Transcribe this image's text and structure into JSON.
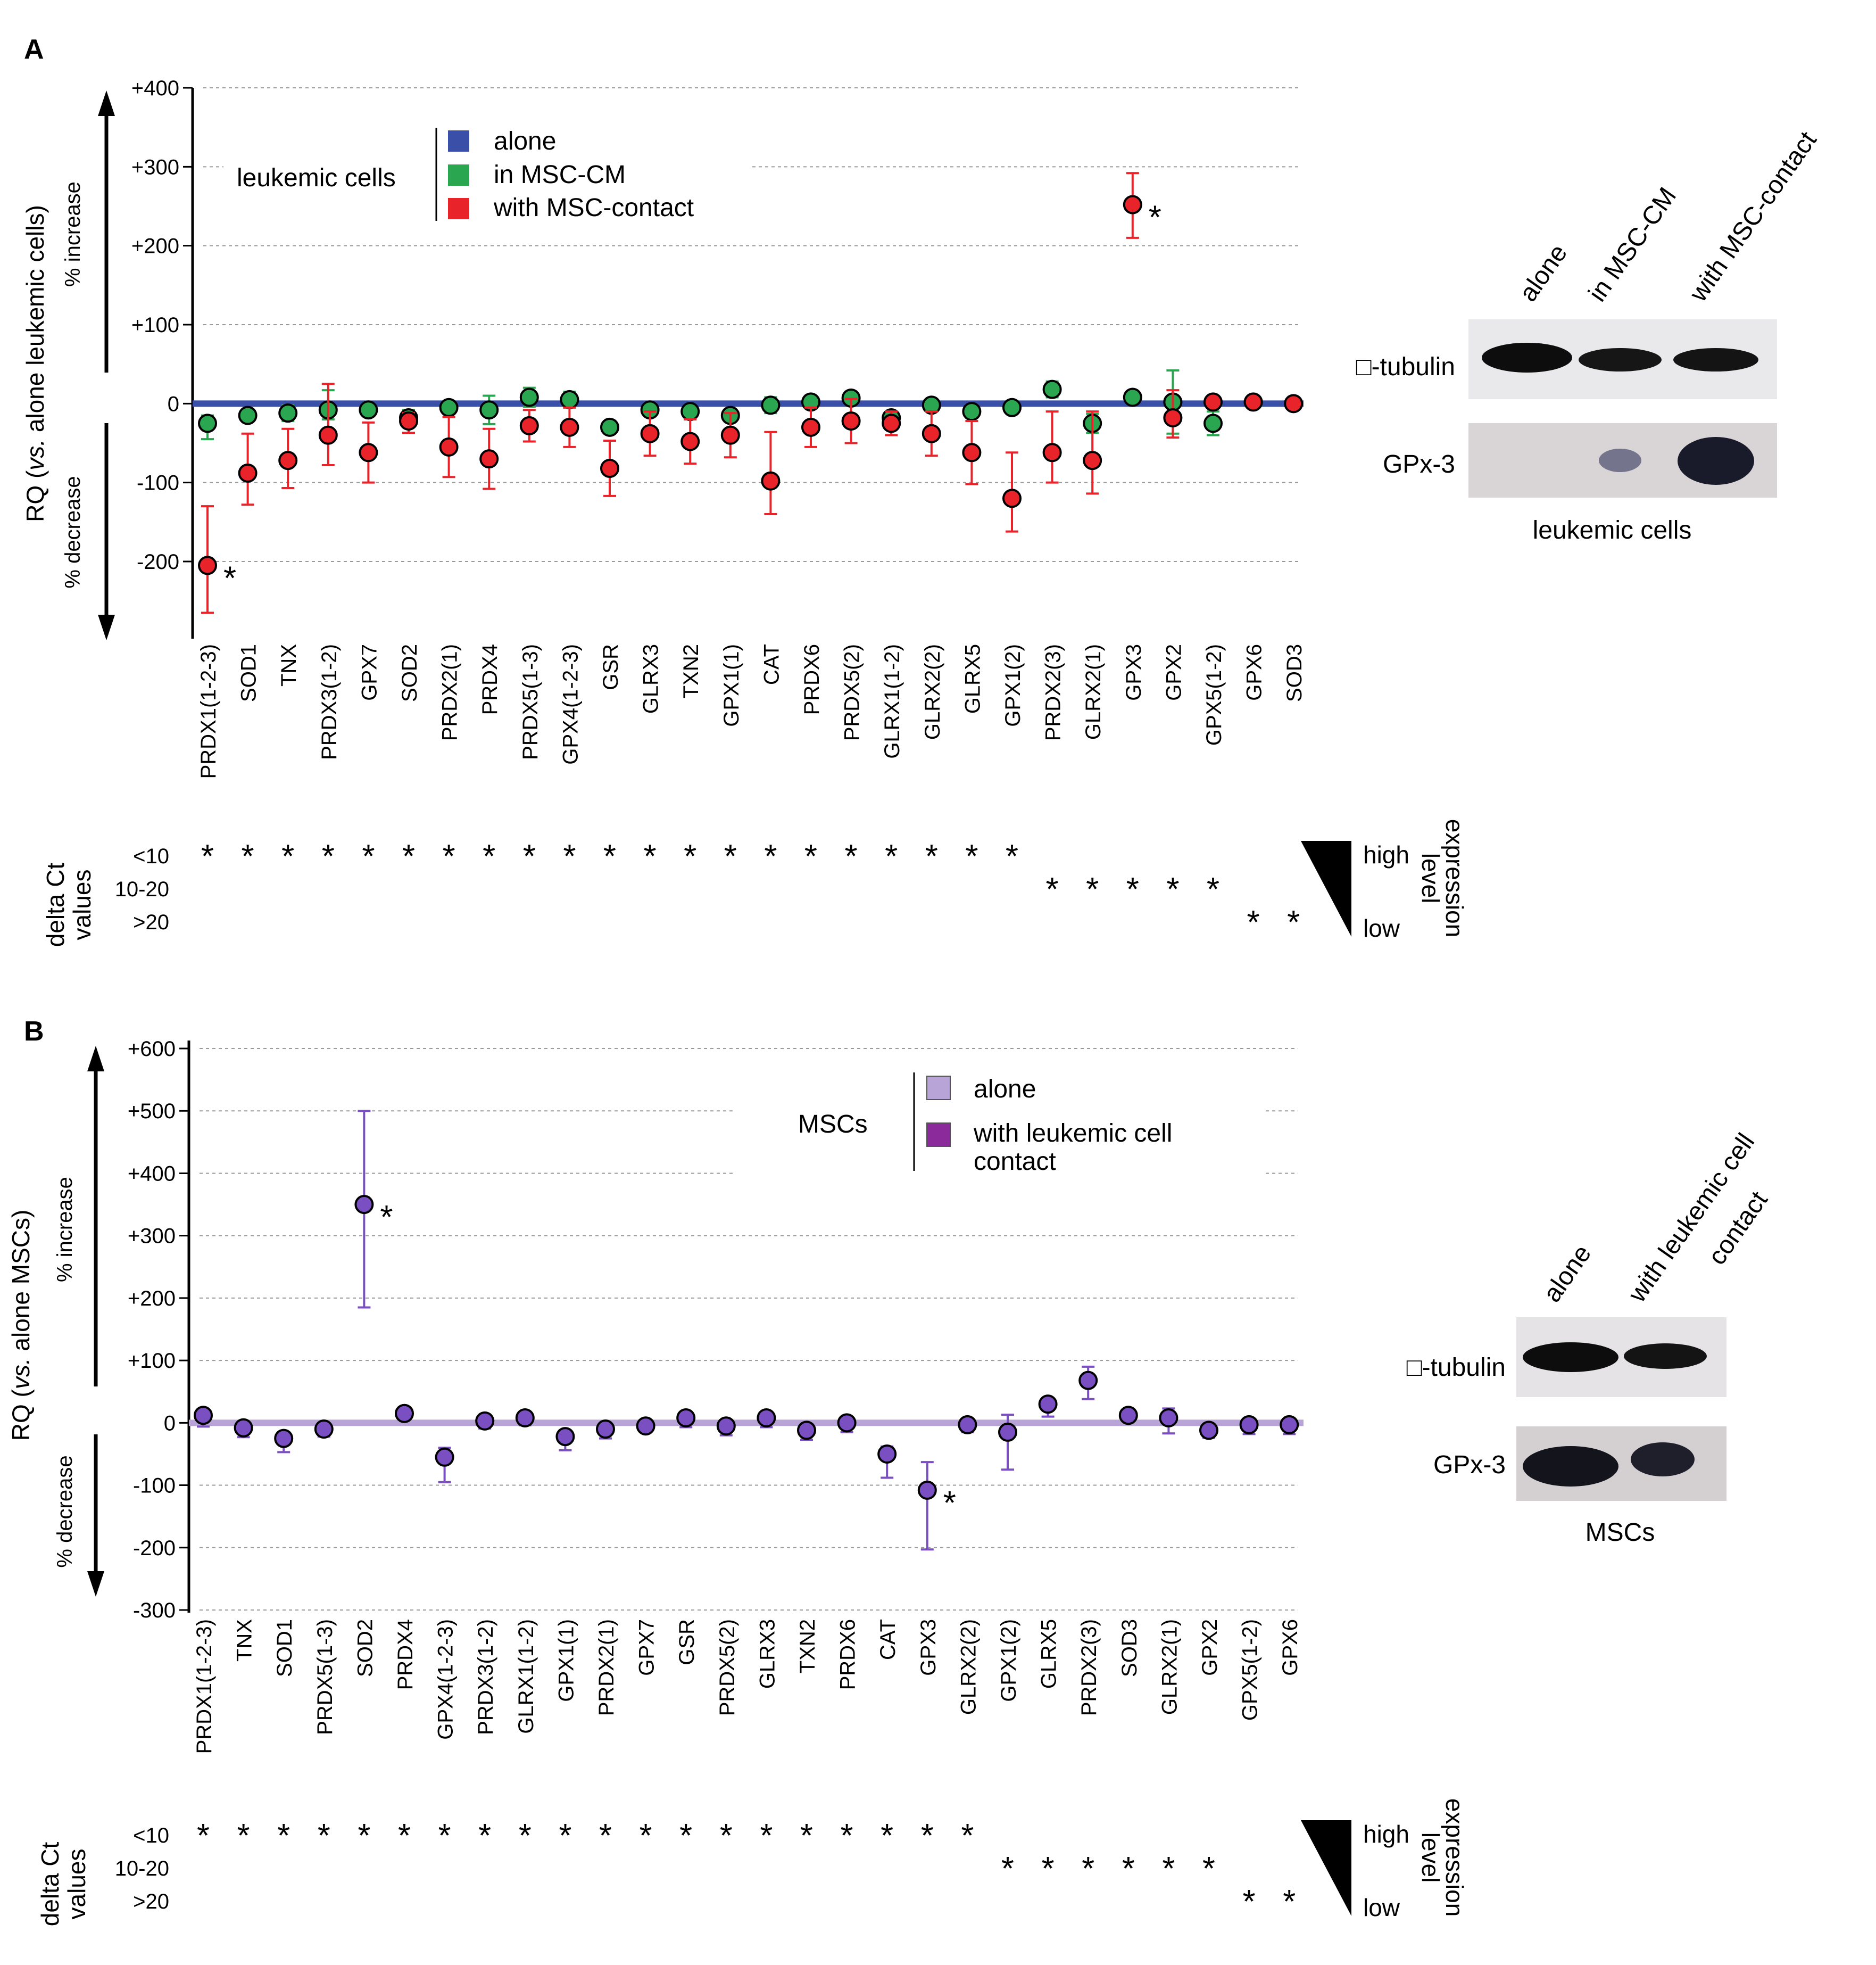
{
  "panel_a": {
    "label": "A",
    "y_axis_title_prefix": "RQ (",
    "y_axis_title_italic": "vs.",
    "y_axis_title_suffix": " alone leukemic cells)",
    "increase_label": "% increase",
    "decrease_label": "% decrease",
    "legend": {
      "group_label": "leukemic cells",
      "items": [
        {
          "label": "alone",
          "color": "#3a4fa8"
        },
        {
          "label": "in MSC-CM",
          "color": "#2aa650"
        },
        {
          "label": "with MSC-contact",
          "color": "#e8242a"
        }
      ]
    },
    "delta_ct": {
      "axis_line1": "delta Ct",
      "axis_line2": "values",
      "rows": [
        "<10",
        "10-20",
        ">20"
      ],
      "row_index": [
        0,
        0,
        0,
        0,
        0,
        0,
        0,
        0,
        0,
        0,
        0,
        0,
        0,
        0,
        0,
        0,
        0,
        0,
        0,
        0,
        0,
        1,
        1,
        1,
        1,
        1,
        2,
        2
      ],
      "symbol": "*",
      "high": "high",
      "low": "low",
      "expression_line1": "expression",
      "expression_line2": "level"
    },
    "western": {
      "lanes": [
        "alone",
        "in MSC-CM",
        "with MSC-contact"
      ],
      "row1_label": "□-tubulin",
      "row2_label": "GPx-3",
      "caption": "leukemic cells"
    }
  },
  "panel_b": {
    "label": "B",
    "y_axis_title_prefix": "RQ (",
    "y_axis_title_italic": "vs.",
    "y_axis_title_suffix": " alone MSCs)",
    "increase_label": "% increase",
    "decrease_label": "% decrease",
    "legend": {
      "group_label": "MSCs",
      "items": [
        {
          "label": "alone",
          "color": "#b8a4d6"
        },
        {
          "label": "with leukemic cell contact",
          "line1": "with leukemic cell",
          "line2": "contact",
          "color": "#8a2a9b"
        }
      ]
    },
    "delta_ct": {
      "axis_line1": "delta Ct",
      "axis_line2": "values",
      "rows": [
        "<10",
        "10-20",
        ">20"
      ],
      "row_index": [
        0,
        0,
        0,
        0,
        0,
        0,
        0,
        0,
        0,
        0,
        0,
        0,
        0,
        0,
        0,
        0,
        0,
        0,
        0,
        0,
        1,
        1,
        1,
        1,
        1,
        1,
        2,
        2
      ],
      "symbol": "*",
      "high": "high",
      "low": "low",
      "expression_line1": "expression",
      "expression_line2": "level"
    },
    "western": {
      "lanes": [
        "alone",
        "with leukemic cell contact"
      ],
      "lane2_line1": "with leukemic cell",
      "lane2_line2": "contact",
      "row1_label": "□-tubulin",
      "row2_label": "GPx-3",
      "caption": "MSCs"
    }
  },
  "chart_data": [
    {
      "type": "scatter",
      "title": "",
      "panel": "A",
      "ylabel": "RQ (vs. alone leukemic cells)",
      "ylim": [
        -290,
        400
      ],
      "yticks": [
        -200,
        -100,
        0,
        100,
        200,
        300,
        400
      ],
      "ytick_labels": [
        "-200",
        "-100",
        "0",
        "+100",
        "+200",
        "+300",
        "+400"
      ],
      "baseline": {
        "name": "alone",
        "value": 0,
        "color": "#3a4fa8"
      },
      "categories": [
        "PRDX1(1-2-3)",
        "SOD1",
        "TNX",
        "PRDX3(1-2)",
        "GPX7",
        "SOD2",
        "PRDX2(1)",
        "PRDX4",
        "PRDX5(1-3)",
        "GPX4(1-2-3)",
        "GSR",
        "GLRX3",
        "TXN2",
        "GPX1(1)",
        "CAT",
        "PRDX6",
        "PRDX5(2)",
        "GLRX1(1-2)",
        "GLRX2(2)",
        "GLRX5",
        "GPX1(2)",
        "PRDX2(3)",
        "GLRX2(1)",
        "GPX3",
        "GPX2",
        "GPX5(1-2)",
        "GPX6",
        "SOD3"
      ],
      "series": [
        {
          "name": "in MSC-CM",
          "color": "#2aa650",
          "values": [
            -25,
            -15,
            -12,
            -8,
            -8,
            -18,
            -5,
            -8,
            8,
            5,
            -30,
            -8,
            -10,
            -15,
            -2,
            2,
            7,
            -18,
            -2,
            -10,
            -5,
            18,
            -25,
            8,
            2,
            -25,
            null,
            null
          ],
          "err_low": [
            20,
            8,
            10,
            12,
            8,
            10,
            8,
            18,
            12,
            10,
            8,
            8,
            8,
            8,
            10,
            8,
            8,
            8,
            8,
            8,
            6,
            10,
            12,
            6,
            40,
            15,
            null,
            null
          ],
          "err_high": [
            10,
            8,
            10,
            25,
            8,
            10,
            8,
            18,
            12,
            10,
            8,
            8,
            8,
            8,
            10,
            8,
            8,
            8,
            8,
            8,
            6,
            10,
            12,
            6,
            40,
            15,
            null,
            null
          ]
        },
        {
          "name": "with MSC-contact",
          "color": "#e8242a",
          "values": [
            -205,
            -88,
            -72,
            -40,
            -62,
            -22,
            -55,
            -70,
            -28,
            -30,
            -82,
            -38,
            -48,
            -40,
            -98,
            -30,
            -22,
            -25,
            -38,
            -62,
            -120,
            -62,
            -72,
            252,
            -18,
            2,
            2,
            0
          ],
          "err_low": [
            60,
            40,
            35,
            38,
            38,
            15,
            38,
            38,
            20,
            25,
            35,
            28,
            28,
            28,
            42,
            25,
            28,
            15,
            28,
            40,
            42,
            38,
            42,
            42,
            25,
            null,
            null,
            null
          ],
          "err_high": [
            75,
            50,
            40,
            65,
            38,
            10,
            38,
            38,
            20,
            25,
            35,
            28,
            28,
            28,
            62,
            25,
            28,
            15,
            28,
            40,
            58,
            52,
            62,
            40,
            35,
            null,
            null,
            null
          ]
        }
      ],
      "significance": [
        {
          "category": "PRDX1(1-2-3)",
          "series": "with MSC-contact",
          "symbol": "*"
        },
        {
          "category": "GPX3",
          "series": "with MSC-contact",
          "symbol": "*"
        }
      ]
    },
    {
      "type": "scatter",
      "title": "",
      "panel": "B",
      "ylabel": "RQ (vs. alone MSCs)",
      "ylim": [
        -300,
        600
      ],
      "yticks": [
        -300,
        -200,
        -100,
        0,
        100,
        200,
        300,
        400,
        500,
        600
      ],
      "ytick_labels": [
        "-300",
        "-200",
        "-100",
        "0",
        "+100",
        "+200",
        "+300",
        "+400",
        "+500",
        "+600"
      ],
      "baseline": {
        "name": "alone",
        "value": 0,
        "color": "#b8a4d6"
      },
      "categories": [
        "PRDX1(1-2-3)",
        "TNX",
        "SOD1",
        "PRDX5(1-3)",
        "SOD2",
        "PRDX4",
        "GPX4(1-2-3)",
        "PRDX3(1-2)",
        "GLRX1(1-2)",
        "GPX1(1)",
        "PRDX2(1)",
        "GPX7",
        "GSR",
        "PRDX5(2)",
        "GLRX3",
        "TXN2",
        "PRDX6",
        "CAT",
        "GPX3",
        "GLRX2(2)",
        "GPX1(2)",
        "GLRX5",
        "PRDX2(3)",
        "SOD3",
        "GLRX2(1)",
        "GPX2",
        "GPX5(1-2)",
        "GPX6"
      ],
      "series": [
        {
          "name": "with leukemic cell contact",
          "color": "#7a4fc2",
          "values": [
            12,
            -8,
            -25,
            -10,
            350,
            15,
            -55,
            3,
            8,
            -22,
            -10,
            -5,
            8,
            -5,
            8,
            -12,
            0,
            -50,
            -108,
            -3,
            -15,
            30,
            68,
            12,
            8,
            -12,
            -3,
            -3
          ],
          "err_low": [
            18,
            15,
            22,
            12,
            165,
            10,
            40,
            12,
            12,
            22,
            15,
            10,
            15,
            15,
            15,
            15,
            15,
            38,
            95,
            12,
            60,
            20,
            30,
            8,
            25,
            12,
            15,
            15
          ],
          "err_high": [
            8,
            8,
            10,
            8,
            150,
            10,
            15,
            8,
            8,
            10,
            8,
            8,
            8,
            8,
            8,
            8,
            8,
            12,
            45,
            8,
            28,
            10,
            22,
            8,
            15,
            8,
            8,
            8
          ]
        }
      ],
      "significance": [
        {
          "category": "SOD2",
          "series": "with leukemic cell contact",
          "symbol": "*"
        },
        {
          "category": "GPX3",
          "series": "with leukemic cell contact",
          "symbol": "*"
        }
      ]
    }
  ]
}
